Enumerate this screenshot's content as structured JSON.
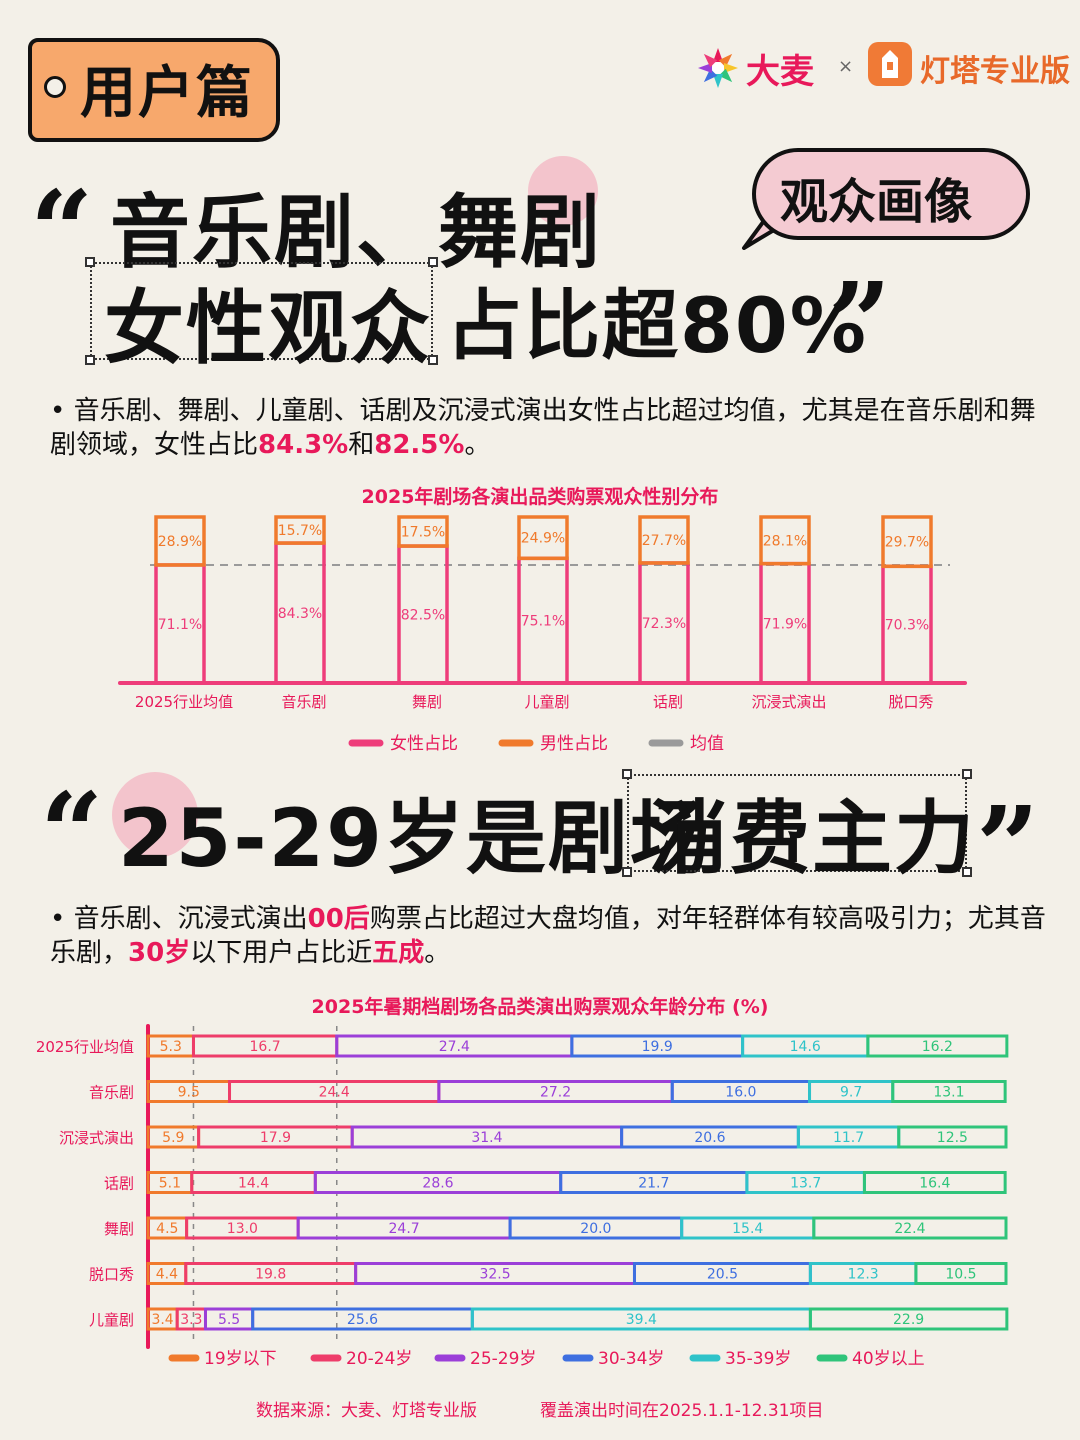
{
  "header": {
    "tag_label": "用户篇",
    "brand1": "大麦",
    "separator": "×",
    "brand2": "灯塔专业版",
    "bubble_label": "观众画像"
  },
  "section1": {
    "headline_line1": "音乐剧、舞剧",
    "headline_line2_boxed": "女性观众",
    "headline_line2_rest": "占比超80%",
    "bullet": {
      "prefix": "音乐剧、舞剧、儿童剧、话剧及沉浸式演出女性占比超过均值，尤其是在音乐剧和舞剧领域，女性占比",
      "hl1": "84.3%",
      "mid": "和",
      "hl2": "82.5%",
      "suffix": "。"
    }
  },
  "section2": {
    "headline_main": "25-29岁是剧场",
    "headline_boxed": "消费主力",
    "bullet": {
      "prefix": "音乐剧、沉浸式演出",
      "hl1": "00后",
      "mid1": "购票占比超过大盘均值，对年轻群体有较高吸引力；尤其音乐剧，",
      "hl2": "30岁",
      "mid2": "以下用户占比近",
      "hl3": "五成",
      "suffix": "。"
    }
  },
  "colors": {
    "accent": "#e8195a",
    "female": "#ee3d7a",
    "male": "#f07a2c",
    "average": "#9a9a9a"
  },
  "chart_data": [
    {
      "type": "bar",
      "stacked": true,
      "title": "2025年剧场各演出品类购票观众性别分布",
      "categories": [
        "2025行业均值",
        "音乐剧",
        "舞剧",
        "儿童剧",
        "话剧",
        "沉浸式演出",
        "脱口秀"
      ],
      "series": [
        {
          "name": "女性占比",
          "values": [
            71.1,
            84.3,
            82.5,
            75.1,
            72.3,
            71.9,
            70.3
          ],
          "color": "#ee3d7a"
        },
        {
          "name": "男性占比",
          "values": [
            28.9,
            15.7,
            17.5,
            24.9,
            27.7,
            28.1,
            29.7
          ],
          "color": "#f07a2c"
        }
      ],
      "reference_line": {
        "name": "均值",
        "value": 71.1,
        "color": "#9a9a9a"
      },
      "legend": "bottom",
      "ylim": [
        0,
        100
      ]
    },
    {
      "type": "bar",
      "orientation": "horizontal",
      "stacked": true,
      "title": "2025年暑期档剧场各品类演出购票观众年龄分布 (%)",
      "categories": [
        "2025行业均值",
        "音乐剧",
        "沉浸式演出",
        "话剧",
        "舞剧",
        "脱口秀",
        "儿童剧"
      ],
      "series": [
        {
          "name": "19岁以下",
          "values": [
            5.3,
            9.5,
            5.9,
            5.1,
            4.5,
            4.4,
            3.4
          ],
          "color": "#f07a2c"
        },
        {
          "name": "20-24岁",
          "values": [
            16.7,
            24.4,
            17.9,
            14.4,
            13.0,
            19.8,
            3.3
          ],
          "color": "#ee3d6a"
        },
        {
          "name": "25-29岁",
          "values": [
            27.4,
            27.2,
            31.4,
            28.6,
            24.7,
            32.5,
            5.5
          ],
          "color": "#9b3fd8"
        },
        {
          "name": "30-34岁",
          "values": [
            19.9,
            16.0,
            20.6,
            21.7,
            20.0,
            20.5,
            25.6
          ],
          "color": "#3e6fe0"
        },
        {
          "name": "35-39岁",
          "values": [
            14.6,
            9.7,
            11.7,
            13.7,
            15.4,
            12.3,
            39.4
          ],
          "color": "#2fc3c9"
        },
        {
          "name": "40岁以上",
          "values": [
            16.2,
            13.1,
            12.5,
            16.4,
            22.4,
            10.5,
            22.9
          ],
          "color": "#2fc47a"
        }
      ],
      "reference_lines": [
        5.3,
        22.0
      ],
      "legend": "bottom",
      "xlim": [
        0,
        100
      ]
    }
  ],
  "footer": {
    "source": "数据来源：大麦、灯塔专业版",
    "coverage": "覆盖演出时间在2025.1.1-12.31项目"
  }
}
